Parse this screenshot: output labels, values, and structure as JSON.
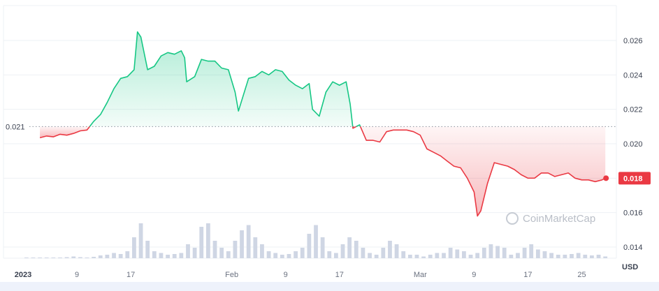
{
  "chart_data": {
    "type": "line",
    "series_name": "",
    "reference_value": 0.021,
    "reference_label": "0.021",
    "last_value": 0.018,
    "last_label": "0.018",
    "unit": "USD",
    "ylim": [
      0.0128,
      0.028
    ],
    "yticks": [
      "0.026",
      "0.024",
      "0.022",
      "0.020",
      "0.018",
      "0.016",
      "0.014"
    ],
    "ytick_values": [
      0.026,
      0.024,
      0.022,
      0.02,
      0.018,
      0.016,
      0.014
    ],
    "xlim": [
      0,
      87
    ],
    "xticks": [
      {
        "day": 0,
        "label": "2023",
        "bold": true
      },
      {
        "day": 8,
        "label": "9",
        "bold": false
      },
      {
        "day": 16,
        "label": "17",
        "bold": false
      },
      {
        "day": 31,
        "label": "Feb",
        "bold": false
      },
      {
        "day": 39,
        "label": "9",
        "bold": false
      },
      {
        "day": 47,
        "label": "17",
        "bold": false
      },
      {
        "day": 59,
        "label": "Mar",
        "bold": false
      },
      {
        "day": 67,
        "label": "9",
        "bold": false
      },
      {
        "day": 75,
        "label": "17",
        "bold": false
      },
      {
        "day": 83,
        "label": "25",
        "bold": false
      }
    ],
    "price": [
      [
        2.5,
        0.02035
      ],
      [
        3.5,
        0.02045
      ],
      [
        4.5,
        0.0204
      ],
      [
        5.5,
        0.02055
      ],
      [
        6.5,
        0.0205
      ],
      [
        7.5,
        0.0206
      ],
      [
        8.5,
        0.02075
      ],
      [
        9.5,
        0.0208
      ],
      [
        10.5,
        0.0213
      ],
      [
        11.5,
        0.0217
      ],
      [
        12.5,
        0.0224
      ],
      [
        13.5,
        0.0232
      ],
      [
        14.5,
        0.0238
      ],
      [
        15.5,
        0.0239
      ],
      [
        16.5,
        0.0243
      ],
      [
        17.0,
        0.0265
      ],
      [
        17.5,
        0.0262
      ],
      [
        18.5,
        0.0243
      ],
      [
        19.5,
        0.0245
      ],
      [
        20.5,
        0.0251
      ],
      [
        21.5,
        0.0253
      ],
      [
        22.5,
        0.0252
      ],
      [
        23.5,
        0.0254
      ],
      [
        24.0,
        0.025
      ],
      [
        24.3,
        0.0236
      ],
      [
        25.5,
        0.0239
      ],
      [
        26.5,
        0.0249
      ],
      [
        27.5,
        0.0248
      ],
      [
        28.5,
        0.0248
      ],
      [
        29.5,
        0.0244
      ],
      [
        30.5,
        0.0243
      ],
      [
        31.5,
        0.023
      ],
      [
        32.0,
        0.0219
      ],
      [
        33.5,
        0.0238
      ],
      [
        34.5,
        0.0239
      ],
      [
        35.5,
        0.0242
      ],
      [
        36.5,
        0.024
      ],
      [
        37.5,
        0.0243
      ],
      [
        38.5,
        0.0242
      ],
      [
        39.5,
        0.0237
      ],
      [
        40.5,
        0.0234
      ],
      [
        41.5,
        0.0232
      ],
      [
        42.5,
        0.0235
      ],
      [
        43.0,
        0.022
      ],
      [
        44.0,
        0.0216
      ],
      [
        45.0,
        0.023
      ],
      [
        46.0,
        0.0236
      ],
      [
        47.0,
        0.0234
      ],
      [
        48.0,
        0.0236
      ],
      [
        48.6,
        0.0223
      ],
      [
        49.0,
        0.0209
      ],
      [
        50.0,
        0.0211
      ],
      [
        51.0,
        0.0202
      ],
      [
        52.0,
        0.0202
      ],
      [
        53.0,
        0.0201
      ],
      [
        54.0,
        0.0207
      ],
      [
        55.0,
        0.0208
      ],
      [
        56.0,
        0.0208
      ],
      [
        57.0,
        0.0208
      ],
      [
        58.0,
        0.0207
      ],
      [
        59.0,
        0.0205
      ],
      [
        60.0,
        0.0197
      ],
      [
        61.0,
        0.0195
      ],
      [
        62.0,
        0.0193
      ],
      [
        63.0,
        0.019
      ],
      [
        64.0,
        0.0187
      ],
      [
        65.0,
        0.0186
      ],
      [
        66.0,
        0.018
      ],
      [
        67.0,
        0.0172
      ],
      [
        67.5,
        0.0158
      ],
      [
        68.0,
        0.0161
      ],
      [
        69.0,
        0.0177
      ],
      [
        70.0,
        0.0189
      ],
      [
        71.0,
        0.0188
      ],
      [
        72.0,
        0.0187
      ],
      [
        73.0,
        0.0185
      ],
      [
        74.0,
        0.0182
      ],
      [
        75.0,
        0.018
      ],
      [
        76.0,
        0.018
      ],
      [
        77.0,
        0.0183
      ],
      [
        78.0,
        0.0183
      ],
      [
        79.0,
        0.0181
      ],
      [
        80.0,
        0.0182
      ],
      [
        81.0,
        0.0183
      ],
      [
        82.0,
        0.018
      ],
      [
        83.0,
        0.0179
      ],
      [
        84.0,
        0.0179
      ],
      [
        85.0,
        0.0178
      ],
      [
        86.0,
        0.0179
      ],
      [
        86.5,
        0.018
      ]
    ],
    "volume": [
      0.02,
      0.02,
      0.02,
      0.02,
      0.02,
      0.02,
      0.03,
      0.05,
      0.03,
      0.02,
      0.04,
      0.08,
      0.1,
      0.15,
      0.12,
      0.2,
      0.6,
      1.0,
      0.5,
      0.2,
      0.15,
      0.1,
      0.12,
      0.15,
      0.4,
      0.3,
      0.9,
      1.0,
      0.5,
      0.3,
      0.2,
      0.5,
      0.8,
      0.95,
      0.6,
      0.4,
      0.2,
      0.15,
      0.1,
      0.12,
      0.2,
      0.3,
      0.7,
      0.95,
      0.6,
      0.2,
      0.15,
      0.4,
      0.6,
      0.5,
      0.3,
      0.15,
      0.1,
      0.3,
      0.5,
      0.4,
      0.2,
      0.1,
      0.1,
      0.05,
      0.1,
      0.15,
      0.15,
      0.3,
      0.25,
      0.2,
      0.1,
      0.15,
      0.3,
      0.4,
      0.35,
      0.3,
      0.1,
      0.15,
      0.3,
      0.4,
      0.25,
      0.2,
      0.15,
      0.1,
      0.1,
      0.12,
      0.15,
      0.1,
      0.08,
      0.1,
      0.05
    ]
  },
  "watermark": {
    "text": "CoinMarketCap"
  },
  "colors": {
    "up": "#16c784",
    "down": "#ea3943",
    "grid": "#eef0f4",
    "volume": "#cfd6e4",
    "ref": "#8a929d"
  }
}
